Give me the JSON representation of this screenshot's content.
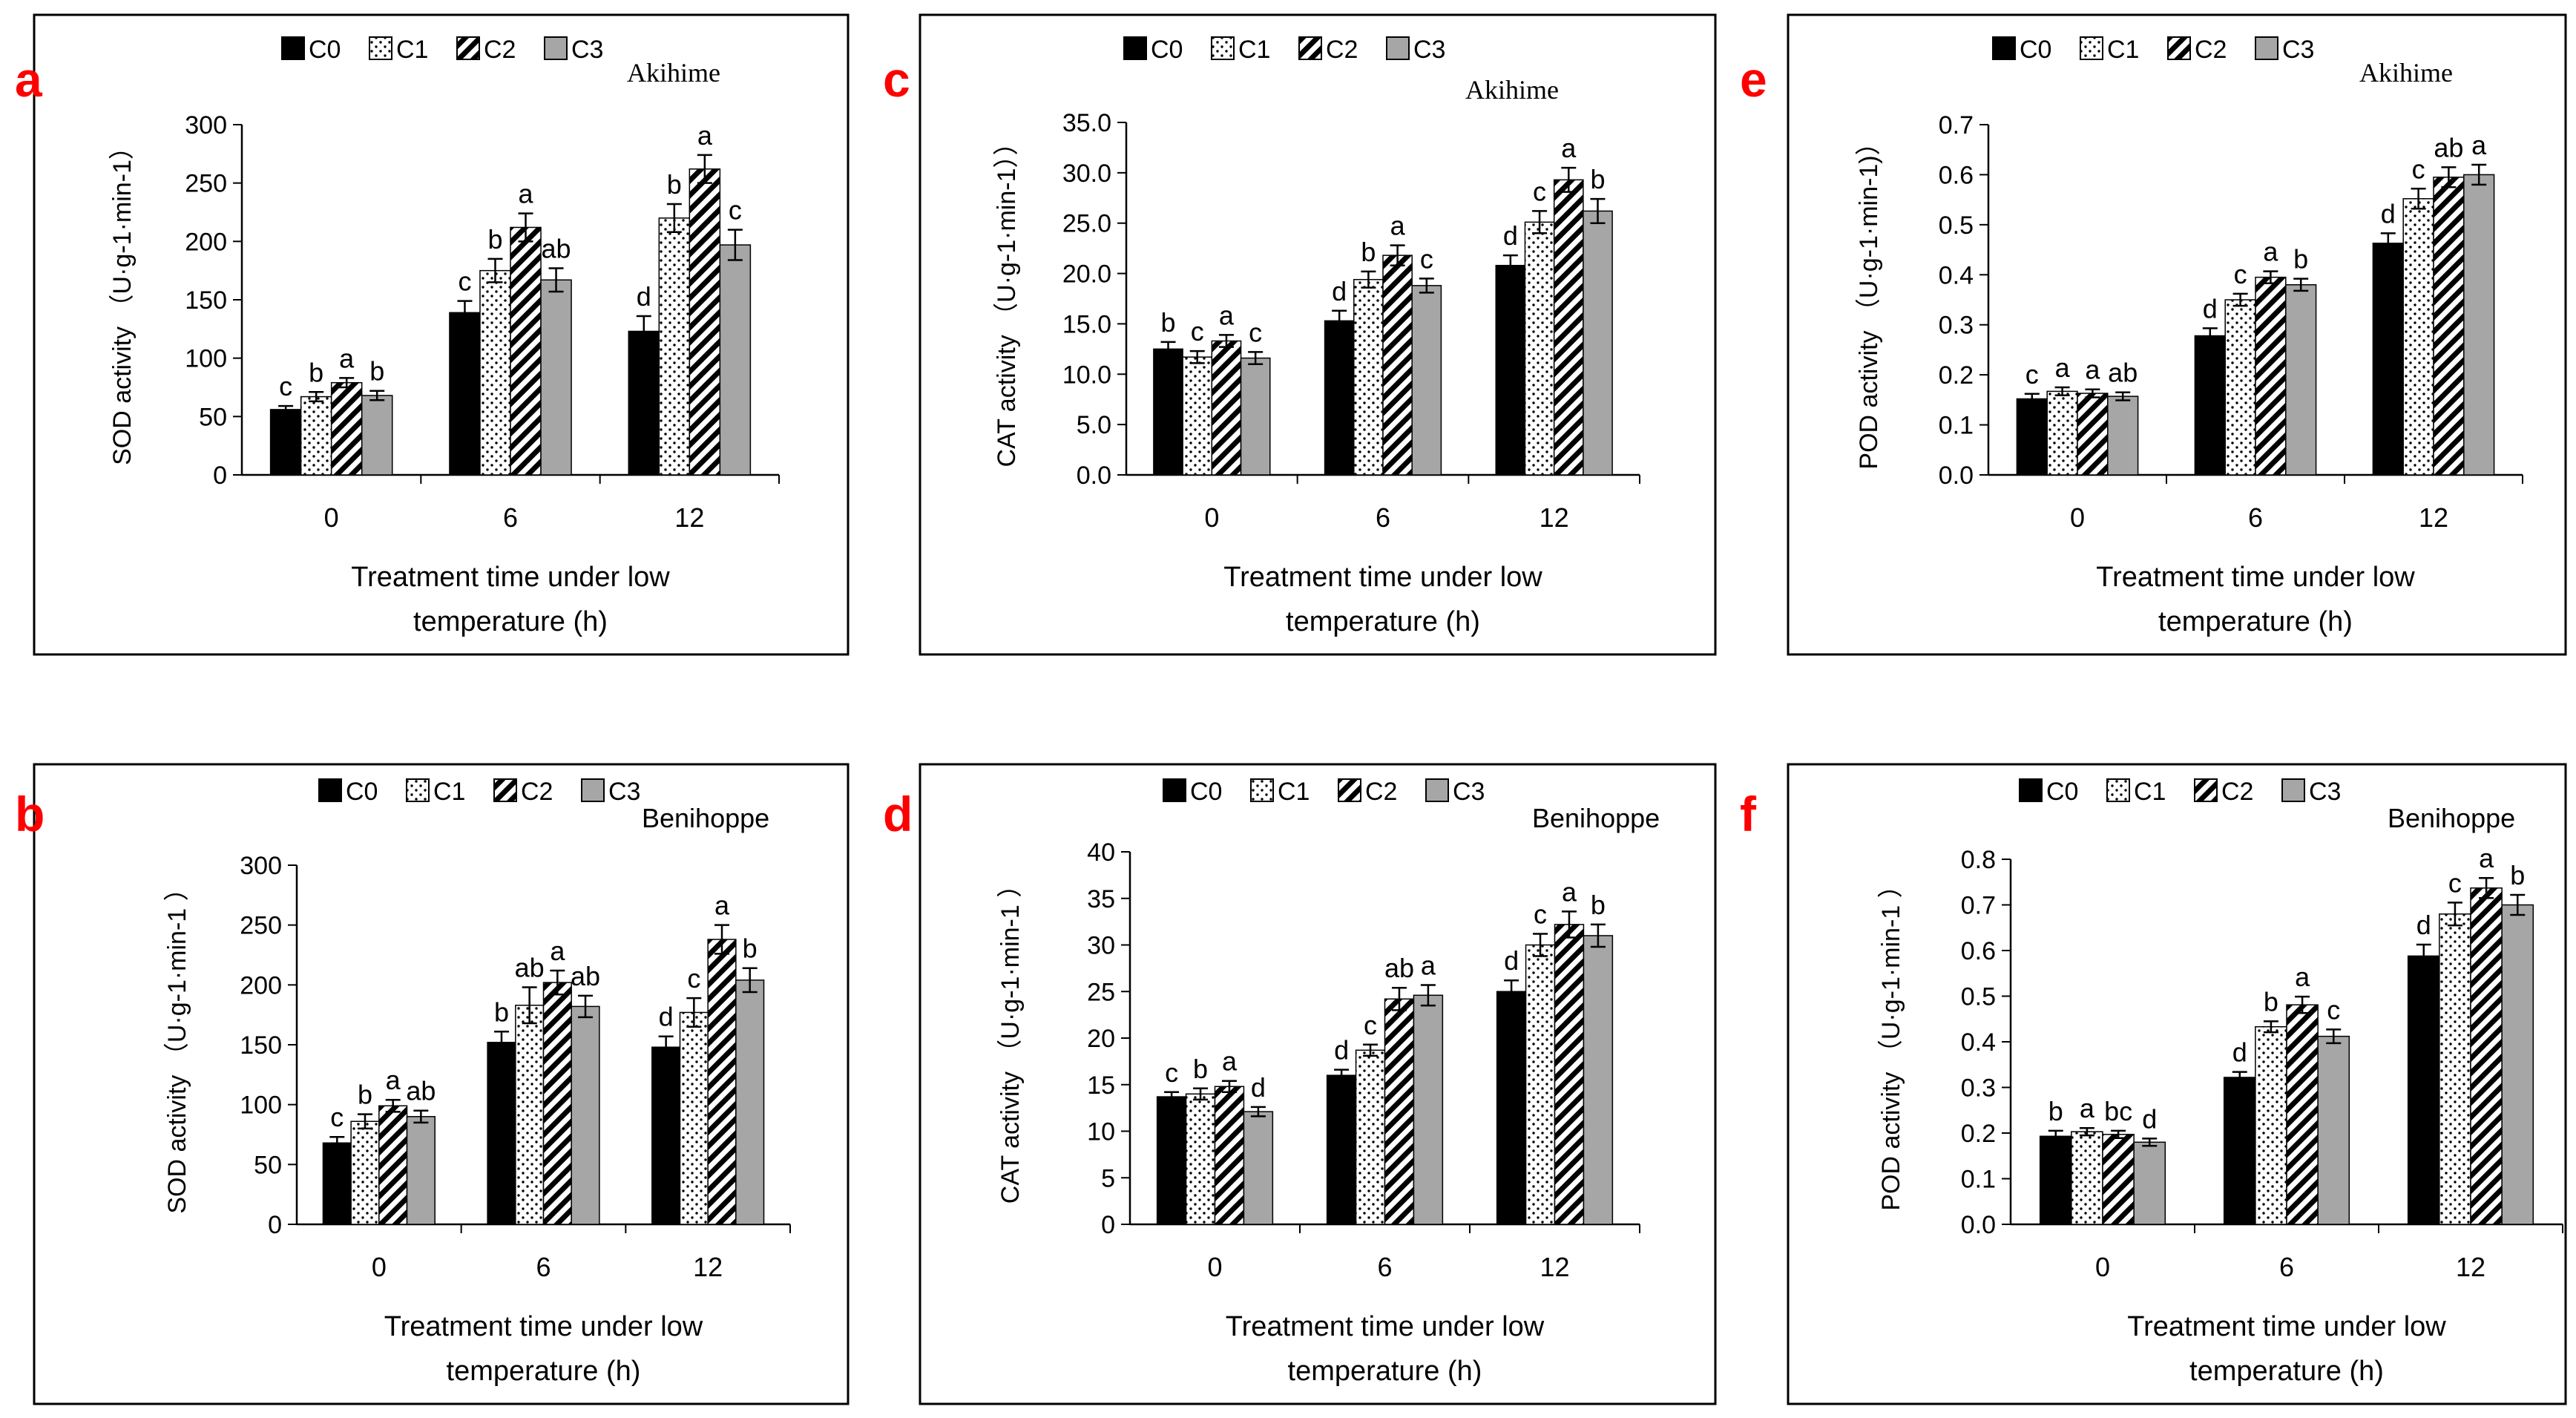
{
  "chart_data": [
    {
      "panel_label": "a",
      "type": "bar",
      "cultivar": "Akihime",
      "categories": [
        "0",
        "6",
        "12"
      ],
      "legend": [
        "C0",
        "C1",
        "C2",
        "C3"
      ],
      "ylabel": "SOD activity （U·g-1·min-1）",
      "xlabel": [
        "Treatment time under low",
        "temperature (h)"
      ],
      "ylim": [
        0,
        300
      ],
      "yticks": [
        "0",
        "50",
        "100",
        "150",
        "200",
        "250",
        "300"
      ],
      "series": [
        {
          "name": "C0",
          "values": [
            56,
            139,
            123
          ],
          "errors": [
            3,
            10,
            13
          ],
          "letters": [
            "c",
            "c",
            "d"
          ]
        },
        {
          "name": "C1",
          "values": [
            67,
            175,
            220
          ],
          "errors": [
            4,
            10,
            12
          ],
          "letters": [
            "b",
            "b",
            "b"
          ]
        },
        {
          "name": "C2",
          "values": [
            79,
            212,
            262
          ],
          "errors": [
            4,
            12,
            12
          ],
          "letters": [
            "a",
            "a",
            "a"
          ]
        },
        {
          "name": "C3",
          "values": [
            68,
            167,
            197
          ],
          "errors": [
            4,
            10,
            13
          ],
          "letters": [
            "b",
            "ab",
            "c"
          ]
        }
      ]
    },
    {
      "panel_label": "b",
      "type": "bar",
      "cultivar": "Benihoppe",
      "categories": [
        "0",
        "6",
        "12"
      ],
      "legend": [
        "C0",
        "C1",
        "C2",
        "C3"
      ],
      "ylabel": "SOD activity （U·g-1·min-1 ）",
      "xlabel": [
        "Treatment time under low",
        "temperature (h)"
      ],
      "ylim": [
        0,
        300
      ],
      "yticks": [
        "0",
        "50",
        "100",
        "150",
        "200",
        "250",
        "300"
      ],
      "series": [
        {
          "name": "C0",
          "values": [
            68,
            152,
            148
          ],
          "errors": [
            5,
            9,
            9
          ],
          "letters": [
            "c",
            "b",
            "d"
          ]
        },
        {
          "name": "C1",
          "values": [
            86,
            183,
            177
          ],
          "errors": [
            6,
            15,
            12
          ],
          "letters": [
            "b",
            "ab",
            "c"
          ]
        },
        {
          "name": "C2",
          "values": [
            99,
            202,
            238
          ],
          "errors": [
            5,
            10,
            12
          ],
          "letters": [
            "a",
            "a",
            "a"
          ]
        },
        {
          "name": "C3",
          "values": [
            90,
            182,
            204
          ],
          "errors": [
            5,
            9,
            10
          ],
          "letters": [
            "ab",
            "ab",
            "b"
          ]
        }
      ]
    },
    {
      "panel_label": "c",
      "type": "bar",
      "cultivar": "Akihime",
      "categories": [
        "0",
        "6",
        "12"
      ],
      "legend": [
        "C0",
        "C1",
        "C2",
        "C3"
      ],
      "ylabel": "CAT activity （U·g-1·min-1））",
      "xlabel": [
        "Treatment time under low",
        "temperature (h)"
      ],
      "ylim": [
        0,
        35
      ],
      "yticks": [
        "0.0",
        "5.0",
        "10.0",
        "15.0",
        "20.0",
        "25.0",
        "30.0",
        "35.0"
      ],
      "series": [
        {
          "name": "C0",
          "values": [
            12.5,
            15.3,
            20.8
          ],
          "errors": [
            0.7,
            1.0,
            1.0
          ],
          "letters": [
            "b",
            "d",
            "d"
          ]
        },
        {
          "name": "C1",
          "values": [
            11.7,
            19.4,
            25.1
          ],
          "errors": [
            0.6,
            0.8,
            1.1
          ],
          "letters": [
            "c",
            "b",
            "c"
          ]
        },
        {
          "name": "C2",
          "values": [
            13.3,
            21.8,
            29.3
          ],
          "errors": [
            0.6,
            1.0,
            1.2
          ],
          "letters": [
            "a",
            "a",
            "a"
          ]
        },
        {
          "name": "C3",
          "values": [
            11.6,
            18.8,
            26.2
          ],
          "errors": [
            0.6,
            0.7,
            1.2
          ],
          "letters": [
            "c",
            "c",
            "b"
          ]
        }
      ]
    },
    {
      "panel_label": "d",
      "type": "bar",
      "cultivar": "Benihoppe",
      "categories": [
        "0",
        "6",
        "12"
      ],
      "legend": [
        "C0",
        "C1",
        "C2",
        "C3"
      ],
      "ylabel": "CAT activity （U·g-1·min-1 ）",
      "xlabel": [
        "Treatment time under low",
        "temperature (h)"
      ],
      "ylim": [
        0,
        40
      ],
      "yticks": [
        "0",
        "5",
        "10",
        "15",
        "20",
        "25",
        "30",
        "35",
        "40"
      ],
      "series": [
        {
          "name": "C0",
          "values": [
            13.7,
            16.0,
            25.0
          ],
          "errors": [
            0.5,
            0.6,
            1.2
          ],
          "letters": [
            "c",
            "d",
            "d"
          ]
        },
        {
          "name": "C1",
          "values": [
            14.0,
            18.7,
            30.0
          ],
          "errors": [
            0.6,
            0.6,
            1.2
          ],
          "letters": [
            "b",
            "c",
            "c"
          ]
        },
        {
          "name": "C2",
          "values": [
            14.8,
            24.2,
            32.2
          ],
          "errors": [
            0.6,
            1.2,
            1.4
          ],
          "letters": [
            "a",
            "ab",
            "a"
          ]
        },
        {
          "name": "C3",
          "values": [
            12.1,
            24.6,
            31.0
          ],
          "errors": [
            0.5,
            1.1,
            1.2
          ],
          "letters": [
            "d",
            "a",
            "b"
          ]
        }
      ]
    },
    {
      "panel_label": "e",
      "type": "bar",
      "cultivar": "Akihime",
      "categories": [
        "0",
        "6",
        "12"
      ],
      "legend": [
        "C0",
        "C1",
        "C2",
        "C3"
      ],
      "ylabel": "POD activity （U·g-1·min-1)）",
      "xlabel": [
        "Treatment time under low",
        "temperature (h)"
      ],
      "ylim": [
        0,
        0.7
      ],
      "yticks": [
        "0.0",
        "0.1",
        "0.2",
        "0.3",
        "0.4",
        "0.5",
        "0.6",
        "0.7"
      ],
      "series": [
        {
          "name": "C0",
          "values": [
            0.152,
            0.278,
            0.463
          ],
          "errors": [
            0.01,
            0.015,
            0.02
          ],
          "letters": [
            "c",
            "d",
            "d"
          ]
        },
        {
          "name": "C1",
          "values": [
            0.167,
            0.35,
            0.552
          ],
          "errors": [
            0.008,
            0.012,
            0.02
          ],
          "letters": [
            "a",
            "c",
            "c"
          ]
        },
        {
          "name": "C2",
          "values": [
            0.163,
            0.395,
            0.595
          ],
          "errors": [
            0.008,
            0.012,
            0.02
          ],
          "letters": [
            "a",
            "a",
            "ab"
          ]
        },
        {
          "name": "C3",
          "values": [
            0.157,
            0.38,
            0.6
          ],
          "errors": [
            0.008,
            0.012,
            0.02
          ],
          "letters": [
            "ab",
            "b",
            "a"
          ]
        }
      ]
    },
    {
      "panel_label": "f",
      "type": "bar",
      "cultivar": "Benihoppe",
      "categories": [
        "0",
        "6",
        "12"
      ],
      "legend": [
        "C0",
        "C1",
        "C2",
        "C3"
      ],
      "ylabel": "POD activity （U·g-1·min-1 ）",
      "xlabel": [
        "Treatment time under low",
        "temperature (h)"
      ],
      "ylim": [
        0,
        0.8
      ],
      "yticks": [
        "0.0",
        "0.1",
        "0.2",
        "0.3",
        "0.4",
        "0.5",
        "0.6",
        "0.7",
        "0.8"
      ],
      "series": [
        {
          "name": "C0",
          "values": [
            0.193,
            0.322,
            0.588
          ],
          "errors": [
            0.012,
            0.012,
            0.025
          ],
          "letters": [
            "b",
            "d",
            "d"
          ]
        },
        {
          "name": "C1",
          "values": [
            0.203,
            0.433,
            0.68
          ],
          "errors": [
            0.008,
            0.012,
            0.025
          ],
          "letters": [
            "a",
            "b",
            "c"
          ]
        },
        {
          "name": "C2",
          "values": [
            0.197,
            0.481,
            0.737
          ],
          "errors": [
            0.008,
            0.018,
            0.022
          ],
          "letters": [
            "bc",
            "a",
            "a"
          ]
        },
        {
          "name": "C3",
          "values": [
            0.18,
            0.412,
            0.7
          ],
          "errors": [
            0.008,
            0.015,
            0.022
          ],
          "letters": [
            "d",
            "c",
            "b"
          ]
        }
      ]
    }
  ],
  "colors": {
    "C0": "#000000",
    "C1": "#ffffff",
    "C2": "#ffffff",
    "C3": "#a6a6a6",
    "panel_label": "#ff0000",
    "axis": "#000000",
    "text": "#000000"
  }
}
